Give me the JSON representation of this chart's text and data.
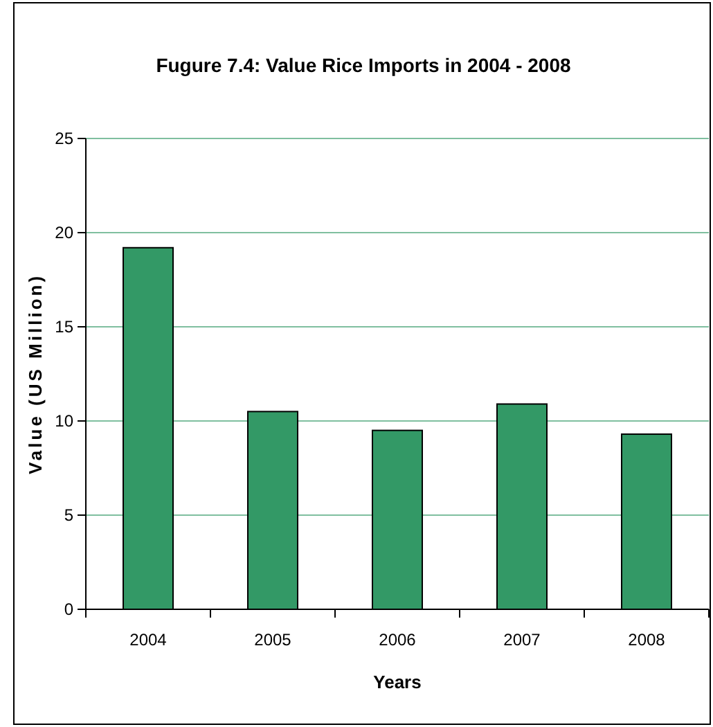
{
  "chart_data": {
    "type": "bar",
    "title": "Fugure 7.4: Value Rice Imports in 2004 - 2008",
    "xlabel": "Years",
    "ylabel": "Value (US Million)",
    "categories": [
      "2004",
      "2005",
      "2006",
      "2007",
      "2008"
    ],
    "values": [
      19.2,
      10.5,
      9.5,
      10.9,
      9.3
    ],
    "color": "#339966",
    "ylim": [
      0,
      25
    ],
    "yticks": [
      0,
      5,
      10,
      15,
      20,
      25
    ],
    "grid": "y"
  }
}
